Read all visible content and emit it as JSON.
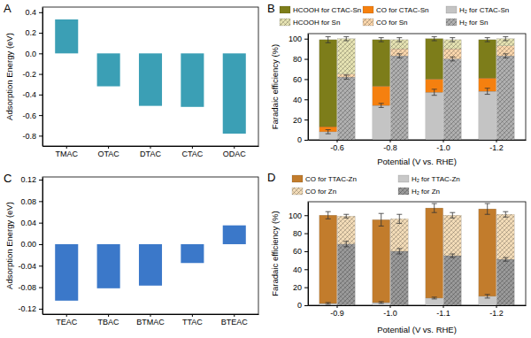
{
  "chart_data": [
    {
      "type": "bar",
      "title": "A",
      "y_label": "Adsorption Energy (eV)",
      "categories": [
        "TMAC",
        "OTAC",
        "DTAC",
        "CTAC",
        "ODAC"
      ],
      "values": [
        0.33,
        -0.32,
        -0.51,
        -0.52,
        -0.78
      ],
      "color": "#3b9fb5",
      "ylim": [
        -0.9,
        0.45
      ],
      "yticks": [
        -0.8,
        -0.6,
        -0.4,
        -0.2,
        {
          "value": 0,
          "label": "0.0"
        },
        0.2,
        0.4
      ]
    },
    {
      "type": "bar",
      "stacked": true,
      "title": "B",
      "x_label": "Potential (V vs. RHE)",
      "y_label": "Faradaic efficiency (%)",
      "categories": [
        "-0.6",
        "-0.8",
        "-1.0",
        "-1.2"
      ],
      "ylim": [
        0,
        105
      ],
      "yticks": [
        0,
        20,
        40,
        60,
        80,
        100
      ],
      "stacks": [
        {
          "series": [
            {
              "name": "H₂ for CTAC-Sn",
              "color": "#c4c4c4",
              "values": [
                8,
                34,
                47,
                48
              ],
              "errors": [
                2,
                2,
                3,
                3
              ]
            },
            {
              "name": "CO for CTAC-Sn",
              "color": "#f5800f",
              "values": [
                5,
                19,
                13,
                13
              ]
            },
            {
              "name": "HCOOH for CTAC-Sn",
              "color": "#7d7d1a",
              "values": [
                86,
                46,
                40,
                38
              ],
              "errors": [
                3,
                2,
                2,
                2
              ]
            }
          ]
        },
        {
          "series": [
            {
              "name": "H₂ for Sn",
              "color": "#b0b0b0",
              "values": [
                62,
                83,
                80,
                83
              ],
              "errors": [
                2,
                2,
                2,
                2
              ]
            },
            {
              "name": "CO for Sn",
              "color": "#fbd7ad",
              "values": [
                3,
                7,
                10,
                10
              ]
            },
            {
              "name": "HCOOH for Sn",
              "color": "#e6e3b3",
              "values": [
                35,
                9,
                9,
                7
              ],
              "errors": [
                2,
                2,
                2,
                2
              ]
            }
          ]
        }
      ]
    },
    {
      "type": "bar",
      "title": "C",
      "y_label": "Adsorption Energy (eV)",
      "categories": [
        "TEAC",
        "TBAC",
        "BTMAC",
        "TTAC",
        "BTEAC"
      ],
      "values": [
        -0.105,
        -0.082,
        -0.077,
        -0.035,
        0.035
      ],
      "color": "#3b78c9",
      "ylim": [
        -0.13,
        0.125
      ],
      "yticks": [
        -0.12,
        -0.08,
        -0.04,
        {
          "value": 0,
          "label": "0.00"
        },
        0.04,
        0.08,
        0.12
      ]
    },
    {
      "type": "bar",
      "stacked": true,
      "title": "D",
      "x_label": "Potential (V vs. RHE)",
      "y_label": "Faradaic efficiency (%)",
      "categories": [
        "-0.9",
        "-1.0",
        "-1.1",
        "-1.2"
      ],
      "ylim": [
        0,
        115
      ],
      "yticks": [
        0,
        20,
        40,
        60,
        80,
        100
      ],
      "stacks": [
        {
          "series": [
            {
              "name": "H₂ for TTAC-Zn",
              "color": "#c8c8c8",
              "values": [
                2,
                3,
                8,
                10
              ],
              "errors": [
                1,
                1,
                1,
                2
              ]
            },
            {
              "name": "CO for TTAC-Zn",
              "color": "#c27c2c",
              "values": [
                98,
                92,
                100,
                97
              ],
              "errors": [
                4,
                7,
                5,
                6
              ]
            }
          ]
        },
        {
          "series": [
            {
              "name": "H₂ for Zn",
              "color": "#9a9a9a",
              "values": [
                68,
                60,
                55,
                51
              ],
              "errors": [
                3,
                3,
                2,
                2
              ]
            },
            {
              "name": "CO for Zn",
              "color": "#f3dcb8",
              "values": [
                31,
                36,
                45,
                50
              ],
              "errors": [
                2,
                5,
                3,
                3
              ]
            }
          ]
        }
      ]
    }
  ]
}
